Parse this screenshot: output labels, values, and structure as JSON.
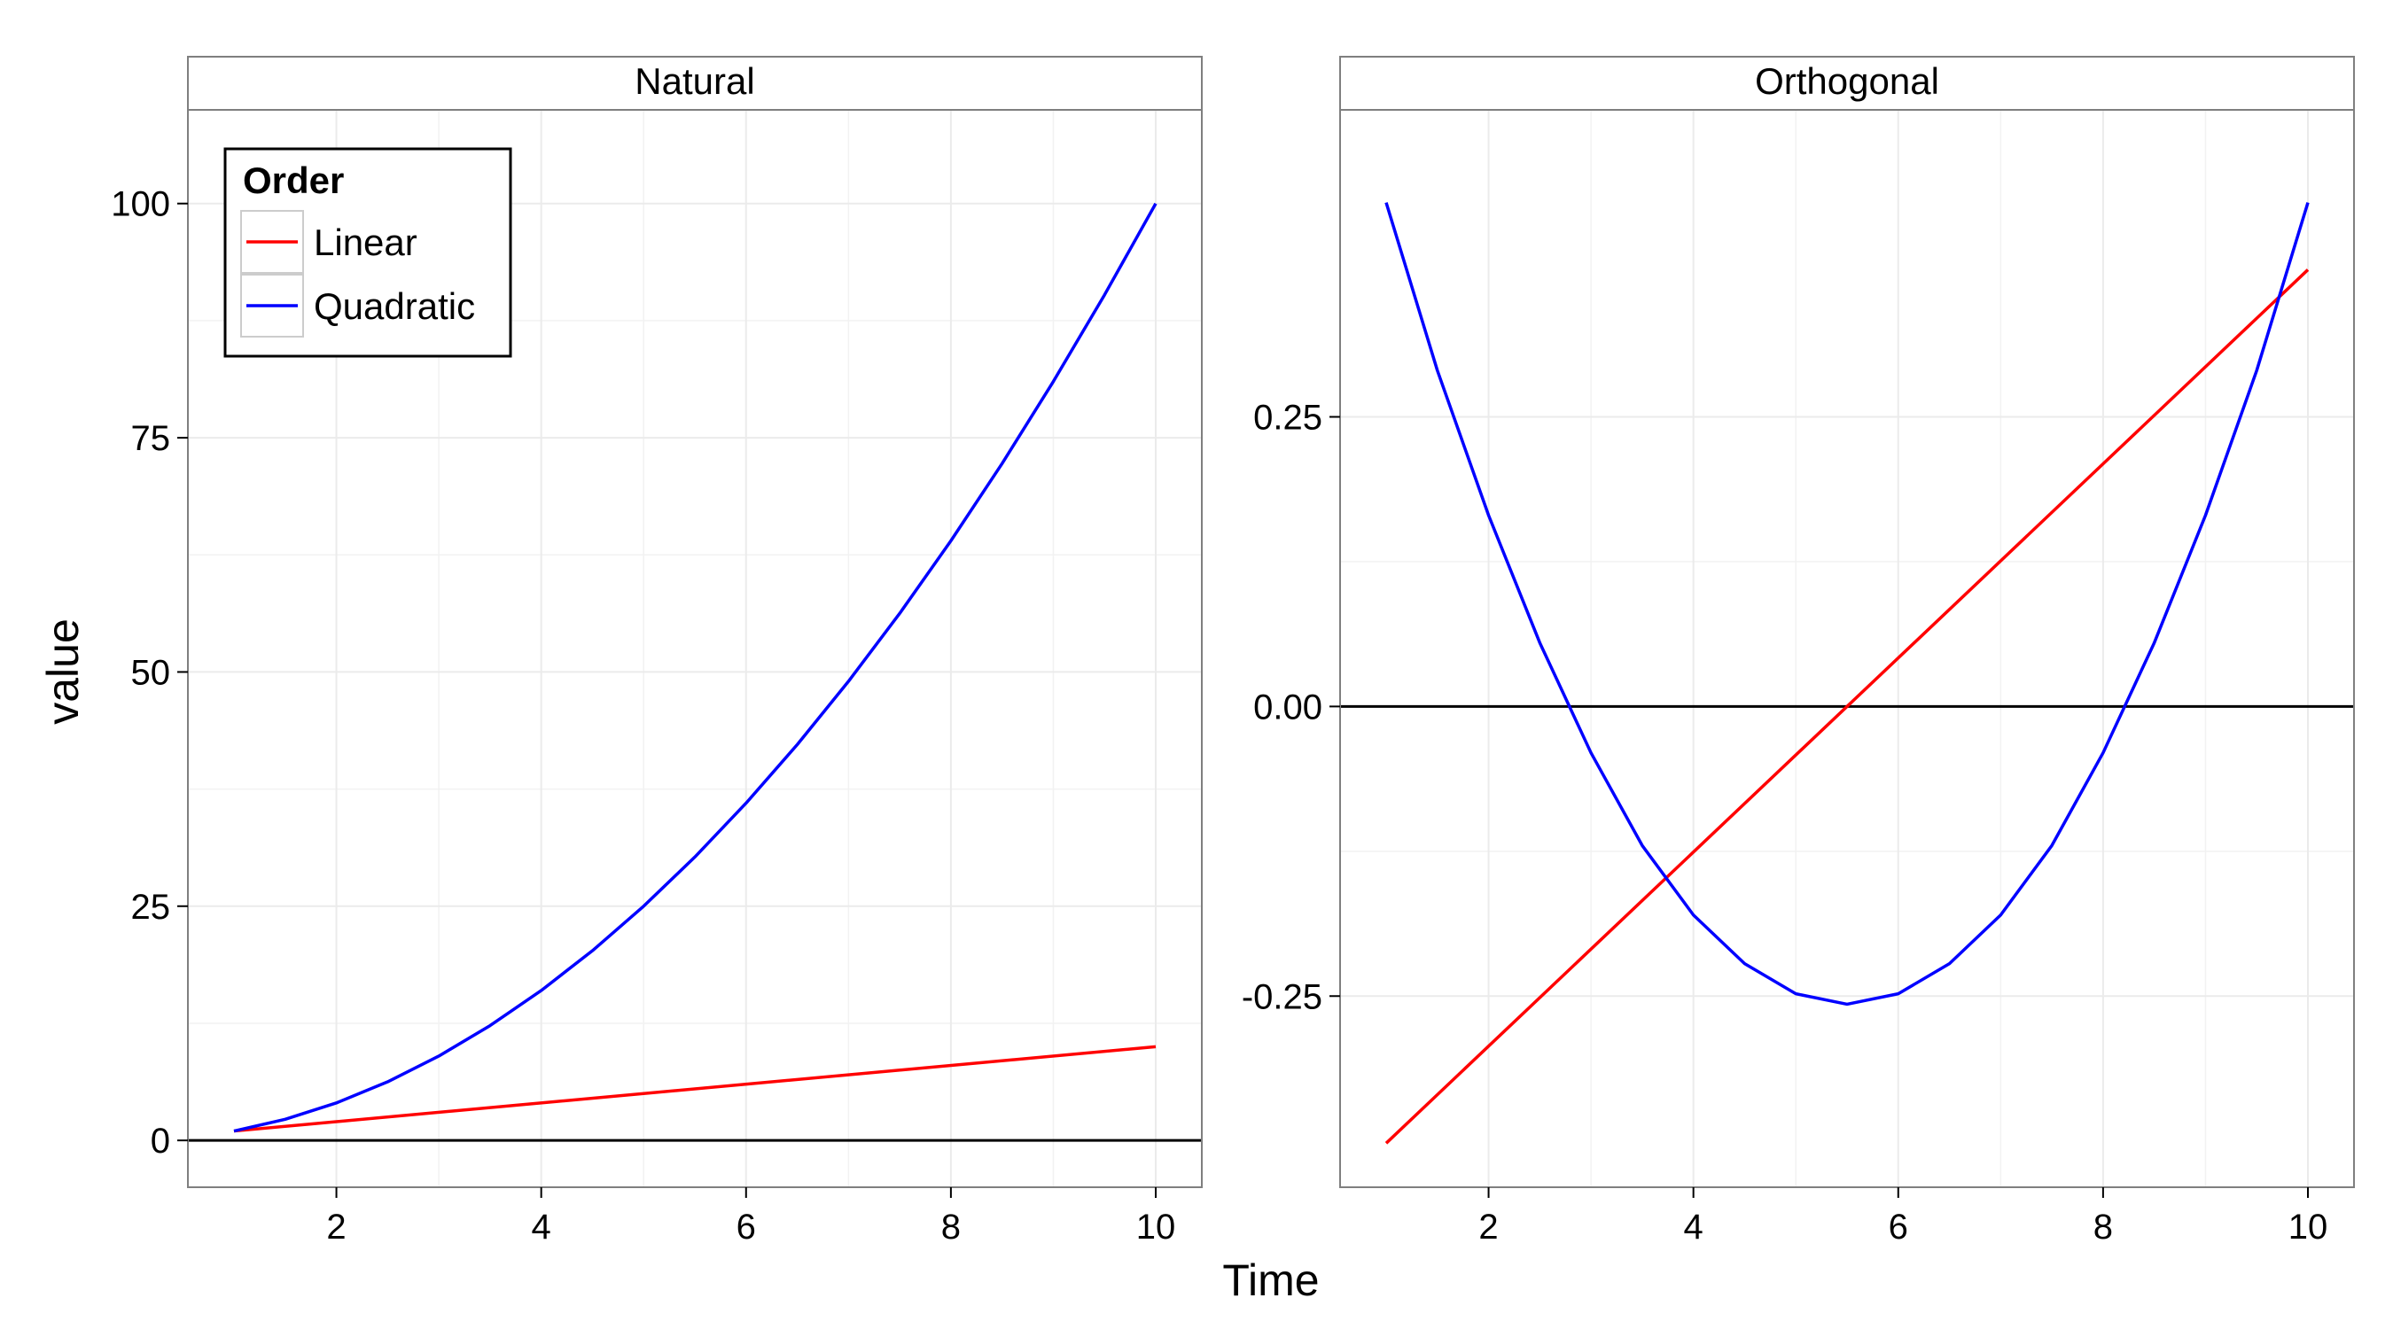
{
  "chart_data": {
    "type": "line",
    "xlabel": "Time",
    "ylabel": "value",
    "legend": {
      "title": "Order",
      "placement": "top-left",
      "entries": [
        {
          "label": "Linear",
          "color": "#ff0000"
        },
        {
          "label": "Quadratic",
          "color": "#0000ff"
        }
      ]
    },
    "panels": [
      {
        "strip": "Natural",
        "xlim": [
          0.55,
          10.45
        ],
        "ylim": [
          -5,
          110
        ],
        "xticks": [
          2,
          4,
          6,
          8,
          10
        ],
        "yticks": [
          0,
          25,
          50,
          75,
          100
        ],
        "ytick_labels": [
          "0",
          "25",
          "50",
          "75",
          "100"
        ],
        "hline": 0,
        "series": [
          {
            "name": "Linear",
            "color": "#ff0000",
            "x": [
              1,
              10
            ],
            "y": [
              1,
              10
            ]
          },
          {
            "name": "Quadratic",
            "color": "#0000ff",
            "x": [
              1,
              1.5,
              2,
              2.5,
              3,
              3.5,
              4,
              4.5,
              5,
              5.5,
              6,
              6.5,
              7,
              7.5,
              8,
              8.5,
              9,
              9.5,
              10
            ],
            "y": [
              1,
              2.25,
              4,
              6.25,
              9,
              12.25,
              16,
              20.25,
              25,
              30.25,
              36,
              42.25,
              49,
              56.25,
              64,
              72.25,
              81,
              90.25,
              100
            ]
          }
        ]
      },
      {
        "strip": "Orthogonal",
        "xlim": [
          0.55,
          10.45
        ],
        "ylim": [
          -0.415,
          0.515
        ],
        "xticks": [
          2,
          4,
          6,
          8,
          10
        ],
        "yticks": [
          -0.25,
          0,
          0.25
        ],
        "ytick_labels": [
          "-0.25",
          "0.00",
          "0.25"
        ],
        "hline": 0,
        "series": [
          {
            "name": "Linear",
            "color": "#ff0000",
            "x": [
              1,
              10
            ],
            "y": [
              -0.377,
              0.377
            ]
          },
          {
            "name": "Quadratic",
            "color": "#0000ff",
            "x": [
              1,
              1.5,
              2,
              2.5,
              3,
              3.5,
              4,
              4.5,
              5,
              5.5,
              6,
              6.5,
              7,
              7.5,
              8,
              8.5,
              9,
              9.5,
              10
            ],
            "y": [
              0.435,
              0.29,
              0.165,
              0.055,
              -0.04,
              -0.12,
              -0.18,
              -0.222,
              -0.248,
              -0.257,
              -0.248,
              -0.222,
              -0.18,
              -0.12,
              -0.04,
              0.055,
              0.165,
              0.29,
              0.435
            ]
          }
        ]
      }
    ]
  }
}
